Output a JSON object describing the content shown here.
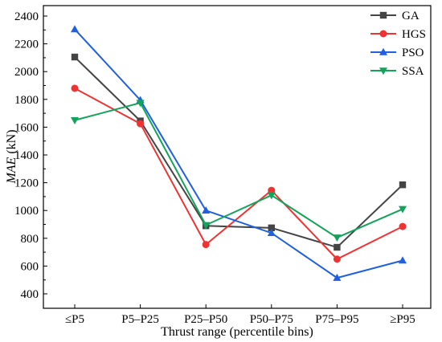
{
  "chart_data": {
    "type": "line",
    "categories": [
      "≤P5",
      "P5–P25",
      "P25–P50",
      "P50–P75",
      "P75–P95",
      "≥P95"
    ],
    "xlabel": "Thrust range (percentile bins)",
    "ylabel_italic": "MAE",
    "ylabel_unit": " (kN)",
    "ylim": [
      300,
      2450
    ],
    "yticks": [
      400,
      600,
      800,
      1000,
      1200,
      1400,
      1600,
      1800,
      2000,
      2200,
      2400
    ],
    "grid": false,
    "legend_position": "top-right",
    "series": [
      {
        "name": "GA",
        "color": "#444444",
        "marker": "square",
        "values": [
          2105,
          1645,
          890,
          875,
          735,
          1185
        ]
      },
      {
        "name": "HGS",
        "color": "#ee3333",
        "marker": "circle",
        "values": [
          1880,
          1625,
          755,
          1145,
          650,
          885
        ]
      },
      {
        "name": "PSO",
        "color": "#1f5fe0",
        "marker": "triangle-up",
        "values": [
          2305,
          1795,
          1000,
          838,
          515,
          640
        ]
      },
      {
        "name": "SSA",
        "color": "#14a35a",
        "marker": "triangle-down",
        "values": [
          1650,
          1775,
          895,
          1110,
          805,
          1010
        ]
      }
    ]
  }
}
